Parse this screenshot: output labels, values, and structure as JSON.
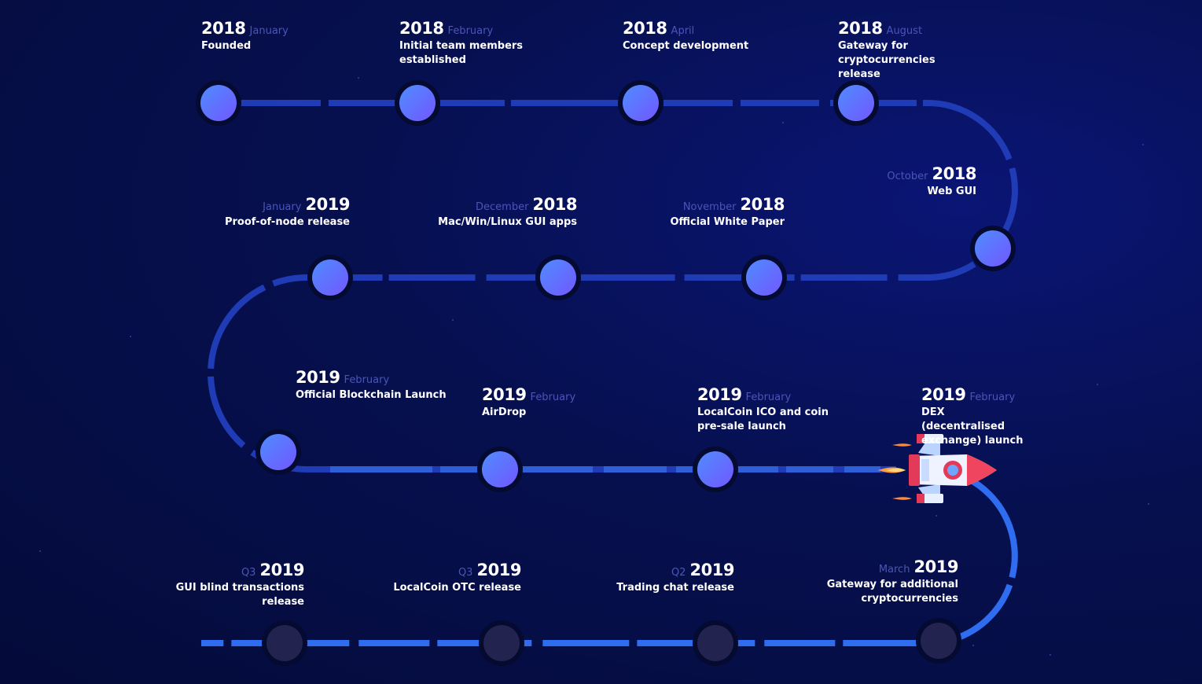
{
  "milestones": [
    {
      "year": "2018",
      "when": "January",
      "desc": "Founded",
      "state": "done"
    },
    {
      "year": "2018",
      "when": "February",
      "desc": "Initial team members established",
      "state": "done"
    },
    {
      "year": "2018",
      "when": "April",
      "desc": "Concept development",
      "state": "done"
    },
    {
      "year": "2018",
      "when": "August",
      "desc": "Gateway for cryptocurrencies release",
      "state": "done"
    },
    {
      "year": "2018",
      "when": "October",
      "desc": "Web GUI",
      "state": "done"
    },
    {
      "year": "2018",
      "when": "November",
      "desc": "Official White Paper",
      "state": "done"
    },
    {
      "year": "2018",
      "when": "December",
      "desc": "Mac/Win/Linux GUI apps",
      "state": "done"
    },
    {
      "year": "2019",
      "when": "January",
      "desc": "Proof-of-node release",
      "state": "done"
    },
    {
      "year": "2019",
      "when": "February",
      "desc": "Official Blockchain Launch",
      "state": "done"
    },
    {
      "year": "2019",
      "when": "February",
      "desc": "AirDrop",
      "state": "done"
    },
    {
      "year": "2019",
      "when": "February",
      "desc": "LocalCoin ICO and coin pre-sale launch",
      "state": "done"
    },
    {
      "year": "2019",
      "when": "February",
      "desc": "DEX (decentralised exchange) launch",
      "state": "current"
    },
    {
      "year": "2019",
      "when": "March",
      "desc": "Gateway for additional cryptocurrencies",
      "state": "upcoming"
    },
    {
      "year": "2019",
      "when": "Q2",
      "desc": "Trading chat release",
      "state": "upcoming"
    },
    {
      "year": "2019",
      "when": "Q3",
      "desc": "LocalCoin OTC release",
      "state": "upcoming"
    },
    {
      "year": "2019",
      "when": "Q3",
      "desc": "GUI blind transactions release",
      "state": "upcoming"
    }
  ],
  "colors": {
    "background": "#050d45",
    "node_done": "#5b6cff",
    "node_upcoming": "#22244f",
    "path_done": "#1f3bb5",
    "path_upcoming": "#2f6df0",
    "month_text": "#4a55b8"
  },
  "icons": {
    "current_marker": "rocket-icon"
  }
}
